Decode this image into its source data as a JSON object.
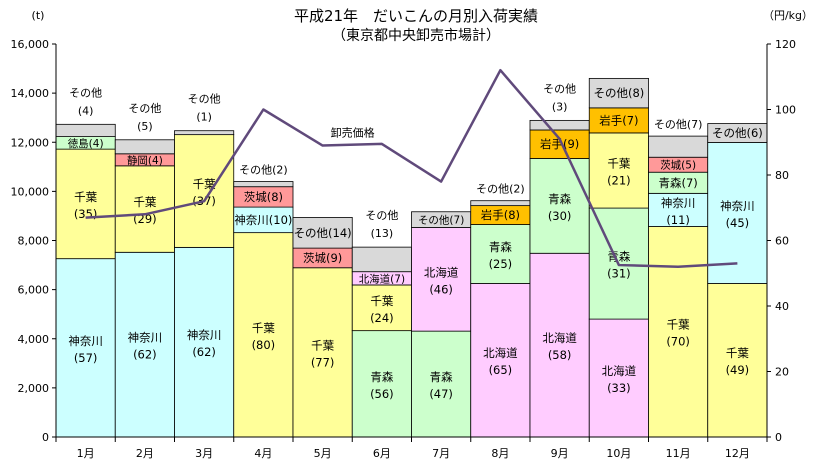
{
  "chart_data": {
    "type": "bar",
    "title": "平成21年　だいこんの月別入荷実績",
    "subtitle": "（東京都中央卸売市場計）",
    "y_left_unit": "(t)",
    "y_right_unit": "（円/kg）",
    "ylim": [
      0,
      16000
    ],
    "y_right_lim": [
      0,
      120
    ],
    "y_ticks": [
      "0",
      "2,000",
      "4,000",
      "6,000",
      "8,000",
      "10,000",
      "12,000",
      "14,000",
      "16,000"
    ],
    "y_right_ticks": [
      "0",
      "20",
      "40",
      "60",
      "80",
      "100",
      "120"
    ],
    "categories": [
      "1月",
      "2月",
      "3月",
      "4月",
      "5月",
      "6月",
      "7月",
      "8月",
      "9月",
      "10月",
      "11月",
      "12月"
    ],
    "colors": {
      "神奈川": "#ccffff",
      "千葉": "#ffff99",
      "青森": "#ccffcc",
      "北海道": "#ffccff",
      "茨城": "#ff9999",
      "静岡": "#ff9999",
      "徳島": "#ccffcc",
      "岩手": "#ffc000",
      "その他": "#d9d9d9",
      "line": "#604a7b"
    },
    "bars": [
      {
        "month": "1月",
        "segments": [
          {
            "name": "神奈川",
            "value": 7260,
            "label": "神奈川",
            "pct": "(57)"
          },
          {
            "name": "千葉",
            "value": 4460,
            "label": "千葉",
            "pct": "(35)"
          },
          {
            "name": "徳島",
            "value": 510,
            "label": "徳島(4)",
            "pct": ""
          },
          {
            "name": "その他",
            "value": 500,
            "label": "",
            "pct": ""
          }
        ],
        "above": {
          "label": "その他",
          "pct": "(4)"
        }
      },
      {
        "month": "2月",
        "segments": [
          {
            "name": "神奈川",
            "value": 7520,
            "label": "神奈川",
            "pct": "(62)"
          },
          {
            "name": "千葉",
            "value": 3520,
            "label": "千葉",
            "pct": "(29)"
          },
          {
            "name": "静岡",
            "value": 490,
            "label": "静岡(4)",
            "pct": ""
          },
          {
            "name": "その他",
            "value": 570,
            "label": "",
            "pct": ""
          }
        ],
        "above": {
          "label": "その他",
          "pct": "(5)"
        }
      },
      {
        "month": "3月",
        "segments": [
          {
            "name": "神奈川",
            "value": 7720,
            "label": "神奈川",
            "pct": "(62)"
          },
          {
            "name": "千葉",
            "value": 4590,
            "label": "千葉",
            "pct": "(37)"
          },
          {
            "name": "その他",
            "value": 160,
            "label": "",
            "pct": ""
          }
        ],
        "above": {
          "label": "その他",
          "pct": "(1)"
        }
      },
      {
        "month": "4月",
        "segments": [
          {
            "name": "千葉",
            "value": 8320,
            "label": "千葉",
            "pct": "(80)"
          },
          {
            "name": "神奈川",
            "value": 1040,
            "label": "神奈川(10)",
            "pct": ""
          },
          {
            "name": "茨城",
            "value": 830,
            "label": "茨城(8)",
            "pct": ""
          },
          {
            "name": "その他",
            "value": 210,
            "label": "",
            "pct": ""
          }
        ],
        "above": {
          "label": "その他(2)",
          "pct": ""
        }
      },
      {
        "month": "5月",
        "segments": [
          {
            "name": "千葉",
            "value": 6890,
            "label": "千葉",
            "pct": "(77)"
          },
          {
            "name": "茨城",
            "value": 800,
            "label": "茨城(9)",
            "pct": ""
          },
          {
            "name": "その他",
            "value": 1250,
            "label": "その他(14)",
            "pct": ""
          }
        ],
        "above": null
      },
      {
        "month": "6月",
        "segments": [
          {
            "name": "青森",
            "value": 4330,
            "label": "青森",
            "pct": "(56)"
          },
          {
            "name": "千葉",
            "value": 1860,
            "label": "千葉",
            "pct": "(24)"
          },
          {
            "name": "北海道",
            "value": 540,
            "label": "北海道(7)",
            "pct": ""
          },
          {
            "name": "その他",
            "value": 1000,
            "label": "",
            "pct": ""
          }
        ],
        "above": {
          "label": "その他",
          "pct": "(13)"
        }
      },
      {
        "month": "7月",
        "segments": [
          {
            "name": "青森",
            "value": 4310,
            "label": "青森",
            "pct": "(47)"
          },
          {
            "name": "北海道",
            "value": 4220,
            "label": "北海道",
            "pct": "(46)"
          },
          {
            "name": "その他",
            "value": 640,
            "label": "その他(7)",
            "pct": ""
          }
        ],
        "above": null
      },
      {
        "month": "8月",
        "segments": [
          {
            "name": "北海道",
            "value": 6250,
            "label": "北海道",
            "pct": "(65)"
          },
          {
            "name": "青森",
            "value": 2400,
            "label": "青森",
            "pct": "(25)"
          },
          {
            "name": "岩手",
            "value": 770,
            "label": "岩手(8)",
            "pct": ""
          },
          {
            "name": "その他",
            "value": 200,
            "label": "",
            "pct": ""
          }
        ],
        "above": {
          "label": "その他(2)",
          "pct": ""
        }
      },
      {
        "month": "9月",
        "segments": [
          {
            "name": "北海道",
            "value": 7480,
            "label": "北海道",
            "pct": "(58)"
          },
          {
            "name": "青森",
            "value": 3860,
            "label": "青森",
            "pct": "(30)"
          },
          {
            "name": "岩手",
            "value": 1160,
            "label": "岩手(9)",
            "pct": ""
          },
          {
            "name": "その他",
            "value": 390,
            "label": "",
            "pct": ""
          }
        ],
        "above": {
          "label": "その他",
          "pct": "(3)"
        }
      },
      {
        "month": "10月",
        "segments": [
          {
            "name": "北海道",
            "value": 4800,
            "label": "北海道",
            "pct": "(33)"
          },
          {
            "name": "青森",
            "value": 4520,
            "label": "青森",
            "pct": "(31)"
          },
          {
            "name": "千葉",
            "value": 3060,
            "label": "千葉",
            "pct": "(21)"
          },
          {
            "name": "岩手",
            "value": 1020,
            "label": "岩手(7)",
            "pct": ""
          },
          {
            "name": "その他",
            "value": 1200,
            "label": "その他(8)",
            "pct": ""
          }
        ],
        "above": null
      },
      {
        "month": "11月",
        "segments": [
          {
            "name": "千葉",
            "value": 8570,
            "label": "千葉",
            "pct": "(70)"
          },
          {
            "name": "神奈川",
            "value": 1350,
            "label": "神奈川",
            "pct": "(11)"
          },
          {
            "name": "青森",
            "value": 860,
            "label": "青森(7)",
            "pct": ""
          },
          {
            "name": "茨城",
            "value": 610,
            "label": "茨城(5)",
            "pct": ""
          },
          {
            "name": "その他",
            "value": 860,
            "label": "",
            "pct": ""
          }
        ],
        "above": {
          "label": "その他(7)",
          "pct": ""
        }
      },
      {
        "month": "12月",
        "segments": [
          {
            "name": "千葉",
            "value": 6250,
            "label": "千葉",
            "pct": "(49)"
          },
          {
            "name": "神奈川",
            "value": 5740,
            "label": "神奈川",
            "pct": "(45)"
          },
          {
            "name": "その他",
            "value": 770,
            "label": "その他(6)",
            "pct": ""
          }
        ],
        "above": null
      }
    ],
    "line": {
      "name": "卸売価格",
      "values": [
        67,
        68,
        72,
        100,
        89,
        89.5,
        78,
        112,
        91,
        52.5,
        52,
        53
      ]
    }
  }
}
